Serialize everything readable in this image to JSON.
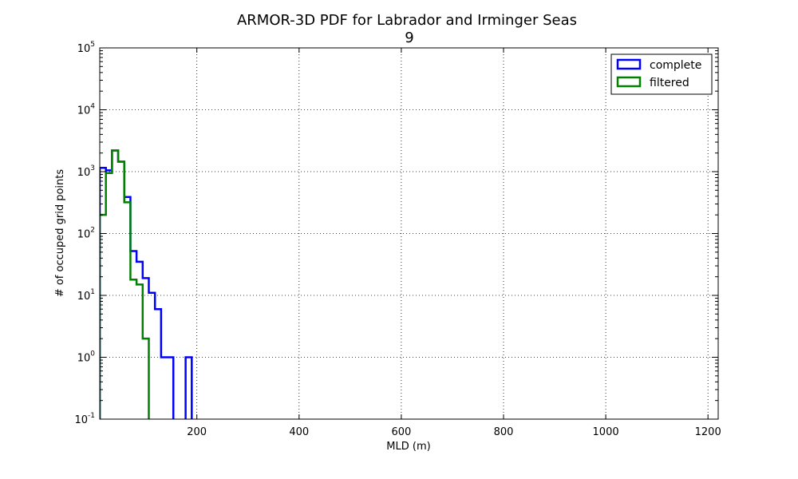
{
  "chart_data": {
    "type": "line",
    "title": "ARMOR-3D PDF for Labrador and Irminger Seas",
    "subtitle": "9",
    "xlabel": "MLD (m)",
    "ylabel": "# of occuped grid points",
    "xlim": [
      10,
      1220
    ],
    "ylim": [
      0.1,
      100000
    ],
    "yscale": "log",
    "grid": true,
    "legend_position": "top-right",
    "x_ticks": [
      200,
      400,
      600,
      800,
      1000,
      1200
    ],
    "x_tick_labels": [
      "200",
      "400",
      "600",
      "800",
      "1000",
      "1200"
    ],
    "y_ticks": [
      {
        "value": 0.1,
        "base": "10",
        "exp": "-1"
      },
      {
        "value": 1,
        "base": "10",
        "exp": "0"
      },
      {
        "value": 10,
        "base": "10",
        "exp": "1"
      },
      {
        "value": 100,
        "base": "10",
        "exp": "2"
      },
      {
        "value": 1000,
        "base": "10",
        "exp": "3"
      },
      {
        "value": 10000,
        "base": "10",
        "exp": "4"
      },
      {
        "value": 100000,
        "base": "10",
        "exp": "5"
      }
    ],
    "series": [
      {
        "name": "complete",
        "color": "#0000ff",
        "bins": [
          [
            10,
            22,
            1150
          ],
          [
            22,
            34,
            1050
          ],
          [
            34,
            46,
            2200
          ],
          [
            46,
            58,
            1450
          ],
          [
            58,
            70,
            390
          ],
          [
            70,
            82,
            52
          ],
          [
            82,
            94,
            35
          ],
          [
            94,
            106,
            19
          ],
          [
            106,
            118,
            11
          ],
          [
            118,
            130,
            6
          ],
          [
            130,
            142,
            1
          ],
          [
            142,
            154,
            1
          ],
          [
            154,
            166,
            0
          ],
          [
            166,
            178,
            0
          ],
          [
            178,
            190,
            1
          ]
        ]
      },
      {
        "name": "filtered",
        "color": "#008000",
        "bins": [
          [
            10,
            22,
            200
          ],
          [
            22,
            34,
            950
          ],
          [
            34,
            46,
            2200
          ],
          [
            46,
            58,
            1450
          ],
          [
            58,
            70,
            320
          ],
          [
            70,
            82,
            18
          ],
          [
            82,
            94,
            15
          ],
          [
            94,
            106,
            2
          ]
        ]
      }
    ]
  }
}
